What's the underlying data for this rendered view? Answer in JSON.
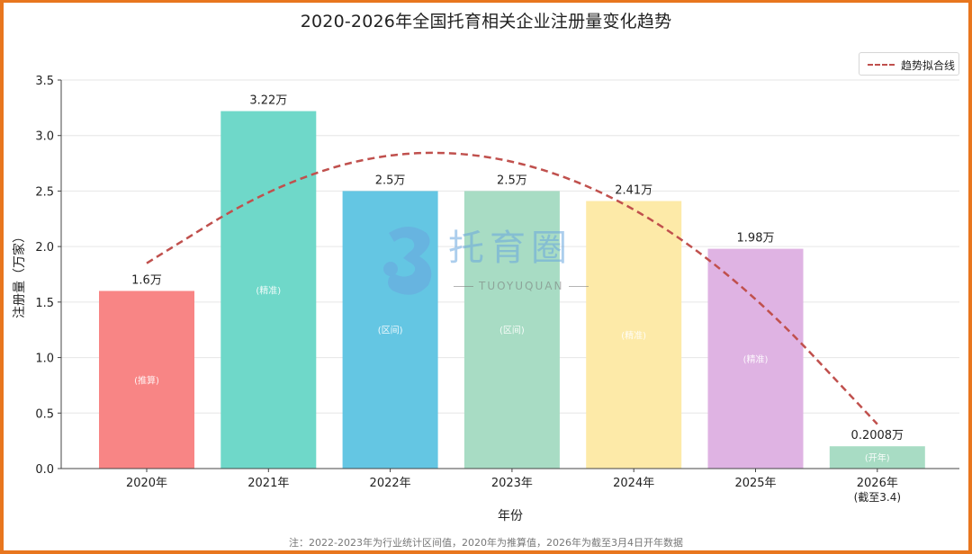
{
  "chart_data": {
    "type": "bar",
    "title": "2020-2026年全国托育相关企业注册量变化趋势",
    "xlabel": "年份",
    "ylabel": "注册量（万家）",
    "ylim": [
      0,
      3.5
    ],
    "yticks": [
      "0.0",
      "0.5",
      "1.0",
      "1.5",
      "2.0",
      "2.5",
      "3.0",
      "3.5"
    ],
    "categories": [
      "2020年",
      "2021年",
      "2022年",
      "2023年",
      "2024年",
      "2025年",
      "2026年"
    ],
    "category_sublabels": [
      "",
      "",
      "",
      "",
      "",
      "",
      "(截至3.4)"
    ],
    "values": [
      1.6,
      3.22,
      2.5,
      2.5,
      2.41,
      1.98,
      0.2008
    ],
    "value_labels": [
      "1.6万",
      "3.22万",
      "2.5万",
      "2.5万",
      "2.41万",
      "1.98万",
      "0.2008万"
    ],
    "bar_tags": [
      "(推算)",
      "(精准)",
      "(区间)",
      "(区间)",
      "(精准)",
      "(精准)",
      "(开年)"
    ],
    "bar_colors": [
      "#f88585",
      "#6fd8c9",
      "#64c6e3",
      "#a8dcc4",
      "#fdeaa8",
      "#dfb3e3",
      "#a8dcc4"
    ],
    "trend": {
      "name": "趋势拟合线",
      "color": "#c0504d",
      "values": [
        1.85,
        2.53,
        2.87,
        2.81,
        2.38,
        1.57,
        0.4
      ]
    },
    "grid": true,
    "legend_position": "top-right",
    "footnote": "注：2022-2023年为行业统计区间值，2020年为推算值，2026年为截至3月4日开年数据"
  },
  "watermark": {
    "logo_text": "托育圈",
    "sub_text": "TUOYUQUAN"
  }
}
